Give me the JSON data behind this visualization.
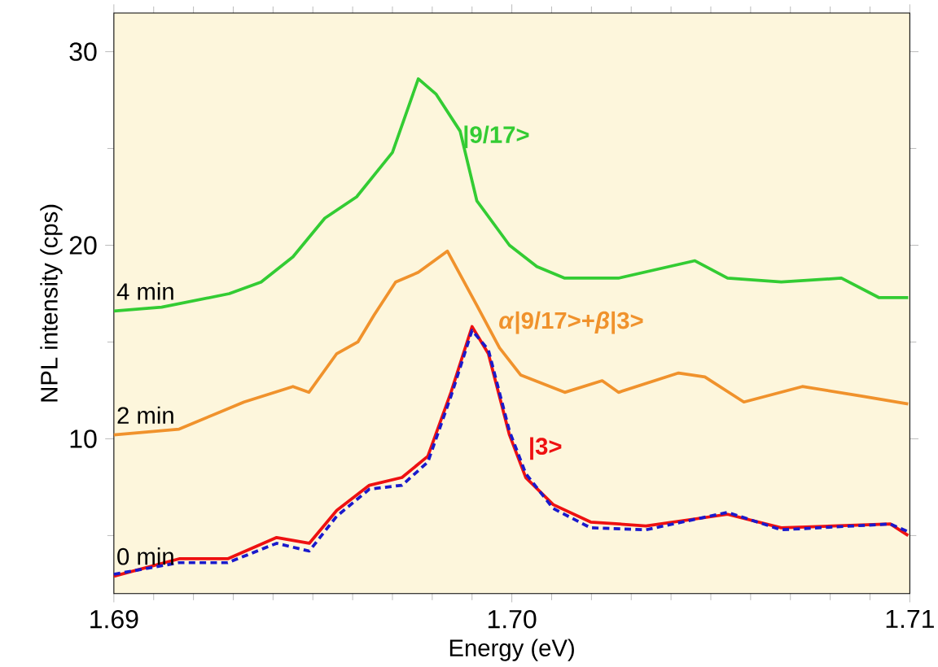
{
  "chart_data": {
    "type": "line",
    "xlabel": "Energy (eV)",
    "ylabel": "NPL intensity (cps)",
    "xlim": [
      1.69,
      1.71
    ],
    "ylim": [
      2,
      32
    ],
    "xticks": [
      1.69,
      {
        "value": 1.691,
        "label": null
      },
      {
        "value": 1.692,
        "label": null
      },
      {
        "value": 1.693,
        "label": null
      },
      {
        "value": 1.694,
        "label": null
      },
      {
        "value": 1.695,
        "label": null
      },
      {
        "value": 1.696,
        "label": null
      },
      {
        "value": 1.697,
        "label": null
      },
      {
        "value": 1.698,
        "label": null
      },
      {
        "value": 1.699,
        "label": null
      },
      {
        "value": 1.7,
        "label": "1.70"
      },
      {
        "value": 1.701,
        "label": null
      },
      {
        "value": 1.702,
        "label": null
      },
      {
        "value": 1.703,
        "label": null
      },
      {
        "value": 1.704,
        "label": null
      },
      {
        "value": 1.705,
        "label": null
      },
      {
        "value": 1.706,
        "label": null
      },
      {
        "value": 1.707,
        "label": null
      },
      {
        "value": 1.708,
        "label": null
      },
      {
        "value": 1.709,
        "label": null
      },
      1.71
    ],
    "yticks": [
      {
        "value": 5,
        "label": null
      },
      10,
      {
        "value": 15,
        "label": null
      },
      20,
      {
        "value": 25,
        "label": null
      },
      30
    ],
    "legend": false,
    "grid": false,
    "marker": "none",
    "series": [
      {
        "name": "4 min",
        "color": "#33cc33",
        "line_style": "solid",
        "x": [
          1.69,
          1.6912,
          1.6929,
          1.6937,
          1.6945,
          1.6953,
          1.6961,
          1.697,
          1.69765,
          1.6981,
          1.6987,
          1.69912,
          1.69994,
          1.70063,
          1.70133,
          1.70268,
          1.7046,
          1.70542,
          1.70677,
          1.70828,
          1.70922,
          1.70996
        ],
        "values": [
          16.6,
          16.8,
          17.5,
          18.1,
          19.4,
          21.4,
          22.5,
          24.8,
          28.6,
          27.8,
          25.9,
          22.3,
          20.0,
          18.9,
          18.3,
          18.3,
          19.2,
          18.3,
          18.1,
          18.3,
          17.3,
          17.3
        ]
      },
      {
        "name": "2 min",
        "color": "#f0922c",
        "line_style": "solid",
        "x": [
          1.69,
          1.69164,
          1.69327,
          1.6945,
          1.6949,
          1.6956,
          1.69613,
          1.69654,
          1.69708,
          1.69765,
          1.69838,
          1.69912,
          1.69969,
          1.70022,
          1.70133,
          1.70227,
          1.70268,
          1.70419,
          1.70485,
          1.70583,
          1.7073,
          1.70881,
          1.70996
        ],
        "values": [
          10.2,
          10.5,
          11.9,
          12.7,
          12.4,
          14.4,
          15.0,
          16.4,
          18.1,
          18.6,
          19.7,
          16.9,
          14.7,
          13.3,
          12.4,
          13.0,
          12.4,
          13.4,
          13.2,
          11.9,
          12.7,
          12.2,
          11.8
        ]
      },
      {
        "name": "0 min",
        "color": "#ee1111",
        "line_style": "solid",
        "x": [
          1.69,
          1.69164,
          1.69286,
          1.69409,
          1.69491,
          1.6956,
          1.69642,
          1.69724,
          1.69789,
          1.69847,
          1.699,
          1.69941,
          1.69994,
          1.70035,
          1.70104,
          1.70198,
          1.70337,
          1.70542,
          1.70677,
          1.70951,
          1.70996
        ],
        "values": [
          2.9,
          3.8,
          3.8,
          4.9,
          4.6,
          6.3,
          7.6,
          8.0,
          9.1,
          12.4,
          15.8,
          14.4,
          10.2,
          8.0,
          6.6,
          5.7,
          5.5,
          6.1,
          5.4,
          5.6,
          5.0
        ]
      },
      {
        "color": "#1a1acc",
        "line_style": "dashed",
        "x": [
          1.69,
          1.69164,
          1.69286,
          1.69409,
          1.69491,
          1.6956,
          1.69642,
          1.69724,
          1.69789,
          1.69847,
          1.699,
          1.69941,
          1.69994,
          1.70035,
          1.70104,
          1.70198,
          1.70337,
          1.70542,
          1.70677,
          1.70951,
          1.70996
        ],
        "values": [
          3.0,
          3.6,
          3.6,
          4.6,
          4.2,
          6.0,
          7.4,
          7.6,
          8.8,
          12.2,
          15.6,
          14.6,
          10.4,
          8.2,
          6.4,
          5.4,
          5.3,
          6.2,
          5.3,
          5.6,
          5.2
        ]
      }
    ],
    "annotations": [
      {
        "text": "|9/17>",
        "x": 1.6987,
        "y": 25.6
      },
      {
        "text": "*α*|9/17>+*β*|3>",
        "x": 1.6996,
        "y": 16.0
      },
      {
        "text": "|3>",
        "x": 1.70035,
        "y": 9.5
      }
    ]
  }
}
